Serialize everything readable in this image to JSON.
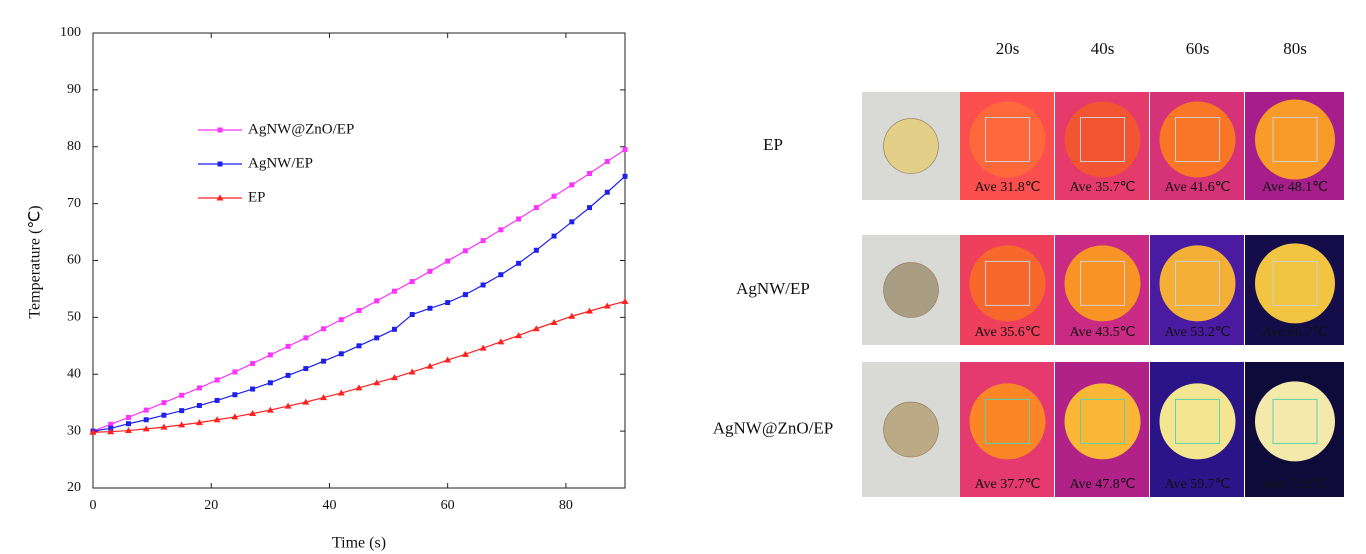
{
  "chart_data": {
    "type": "line",
    "xlabel": "Time (s)",
    "ylabel": "Temperature (℃)",
    "x": [
      0,
      3,
      6,
      9,
      12,
      15,
      18,
      21,
      24,
      27,
      30,
      33,
      36,
      39,
      42,
      45,
      48,
      51,
      54,
      57,
      60,
      63,
      66,
      69,
      72,
      75,
      78,
      81,
      84,
      87,
      90
    ],
    "series": [
      {
        "name": "AgNW@ZnO/EP",
        "color": "#ff33ff",
        "marker": "square",
        "values": [
          30.0,
          31.2,
          32.4,
          33.7,
          35.0,
          36.3,
          37.6,
          39.0,
          40.4,
          41.9,
          43.4,
          44.9,
          46.4,
          48.0,
          49.6,
          51.2,
          52.9,
          54.6,
          56.3,
          58.1,
          59.9,
          61.7,
          63.5,
          65.4,
          67.3,
          69.3,
          71.3,
          73.3,
          75.3,
          77.4,
          79.5
        ]
      },
      {
        "name": "AgNW/EP",
        "color": "#1f1fee",
        "marker": "square",
        "values": [
          30.0,
          30.5,
          31.3,
          32.0,
          32.8,
          33.6,
          34.5,
          35.4,
          36.4,
          37.4,
          38.5,
          39.8,
          41.0,
          42.3,
          43.6,
          45.0,
          46.4,
          47.9,
          50.5,
          51.6,
          52.6,
          54.0,
          55.7,
          57.5,
          59.5,
          61.8,
          64.3,
          66.8,
          69.3,
          72.0,
          74.8
        ]
      },
      {
        "name": "EP",
        "color": "#ff2020",
        "marker": "triangle",
        "values": [
          29.8,
          29.9,
          30.1,
          30.4,
          30.7,
          31.1,
          31.5,
          32.0,
          32.5,
          33.1,
          33.7,
          34.4,
          35.1,
          35.9,
          36.7,
          37.6,
          38.5,
          39.4,
          40.4,
          41.4,
          42.5,
          43.5,
          44.6,
          45.7,
          46.8,
          48.0,
          49.1,
          50.2,
          51.1,
          52.0,
          52.8
        ]
      }
    ],
    "xlim": [
      0,
      90
    ],
    "xticks": [
      0,
      20,
      40,
      60,
      80
    ],
    "ylim": [
      20,
      100
    ],
    "yticks": [
      20,
      30,
      40,
      50,
      60,
      70,
      80,
      90,
      100
    ],
    "legend": "upper left",
    "grid": false
  },
  "thermal_panel": {
    "columns": [
      "20s",
      "40s",
      "60s",
      "80s"
    ],
    "rows": [
      {
        "label": "EP",
        "readings": [
          "Ave 31.8℃",
          "Ave 35.7℃",
          "Ave 41.6℃",
          "Ave 48.1℃"
        ]
      },
      {
        "label": "AgNW/EP",
        "readings": [
          "Ave 35.6℃",
          "Ave 43.5℃",
          "Ave 53.2℃",
          "Ave 66.7℃"
        ]
      },
      {
        "label": "AgNW@ZnO/EP",
        "readings": [
          "Ave 37.7℃",
          "Ave 47.8℃",
          "Ave 59.7℃",
          "Ave 72.6℃"
        ]
      }
    ]
  }
}
